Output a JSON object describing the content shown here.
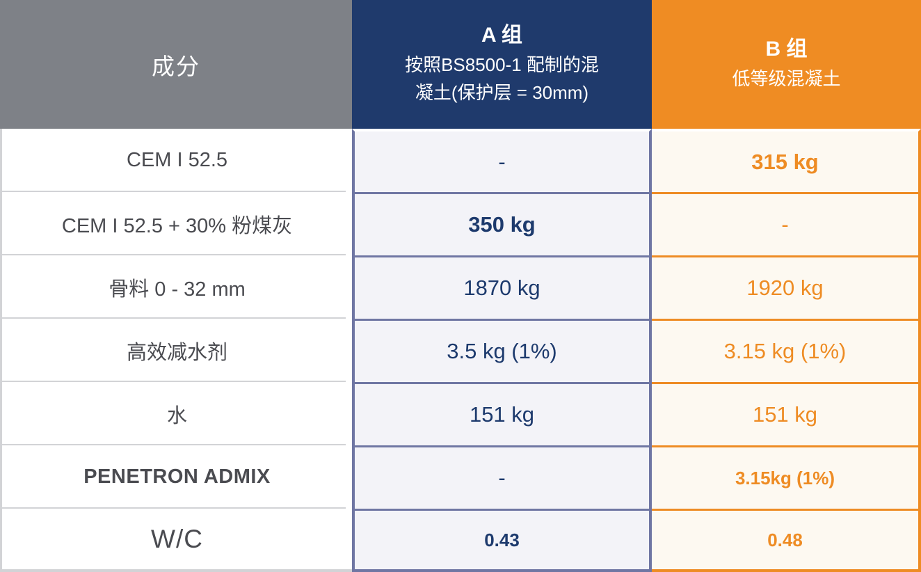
{
  "chart_data": {
    "type": "table",
    "columns": {
      "ingredient": {
        "label": "成分"
      },
      "group_a": {
        "label": "A 组",
        "sublabel_lines": [
          "按照BS8500-1 配制的混",
          "凝土(保护层 = 30mm)"
        ]
      },
      "group_b": {
        "label": "B 组",
        "sublabel": "低等级混凝土"
      }
    },
    "rows": [
      {
        "label": "CEM I 52.5",
        "group_a": "-",
        "group_b": "315 kg"
      },
      {
        "label": "CEM I 52.5 + 30% 粉煤灰",
        "group_a": "350 kg",
        "group_b": "-"
      },
      {
        "label": "骨料 0 - 32 mm",
        "group_a": "1870 kg",
        "group_b": "1920 kg"
      },
      {
        "label": "高效减水剂",
        "group_a": "3.5 kg (1%)",
        "group_b": "3.15 kg (1%)"
      },
      {
        "label": "水",
        "group_a": "151 kg",
        "group_b": "151 kg"
      },
      {
        "label": "PENETRON ADMIX",
        "group_a": "-",
        "group_b": "3.15kg (1%)"
      },
      {
        "label": "W/C",
        "group_a": "0.43",
        "group_b": "0.48"
      }
    ]
  },
  "theme": {
    "header_gray": "#7e8187",
    "header_blue": "#1f3a6c",
    "header_orange": "#ef8c23",
    "cell_a_bg": "#f3f3f8",
    "cell_b_bg": "#fdf9f1",
    "border_a": "#6f76a3",
    "border_b": "#ee8c24",
    "border_gray": "#d2d3d6",
    "text_label": "#4a4b50",
    "text_a": "#1d3a6d",
    "text_b": "#ee8c24"
  }
}
